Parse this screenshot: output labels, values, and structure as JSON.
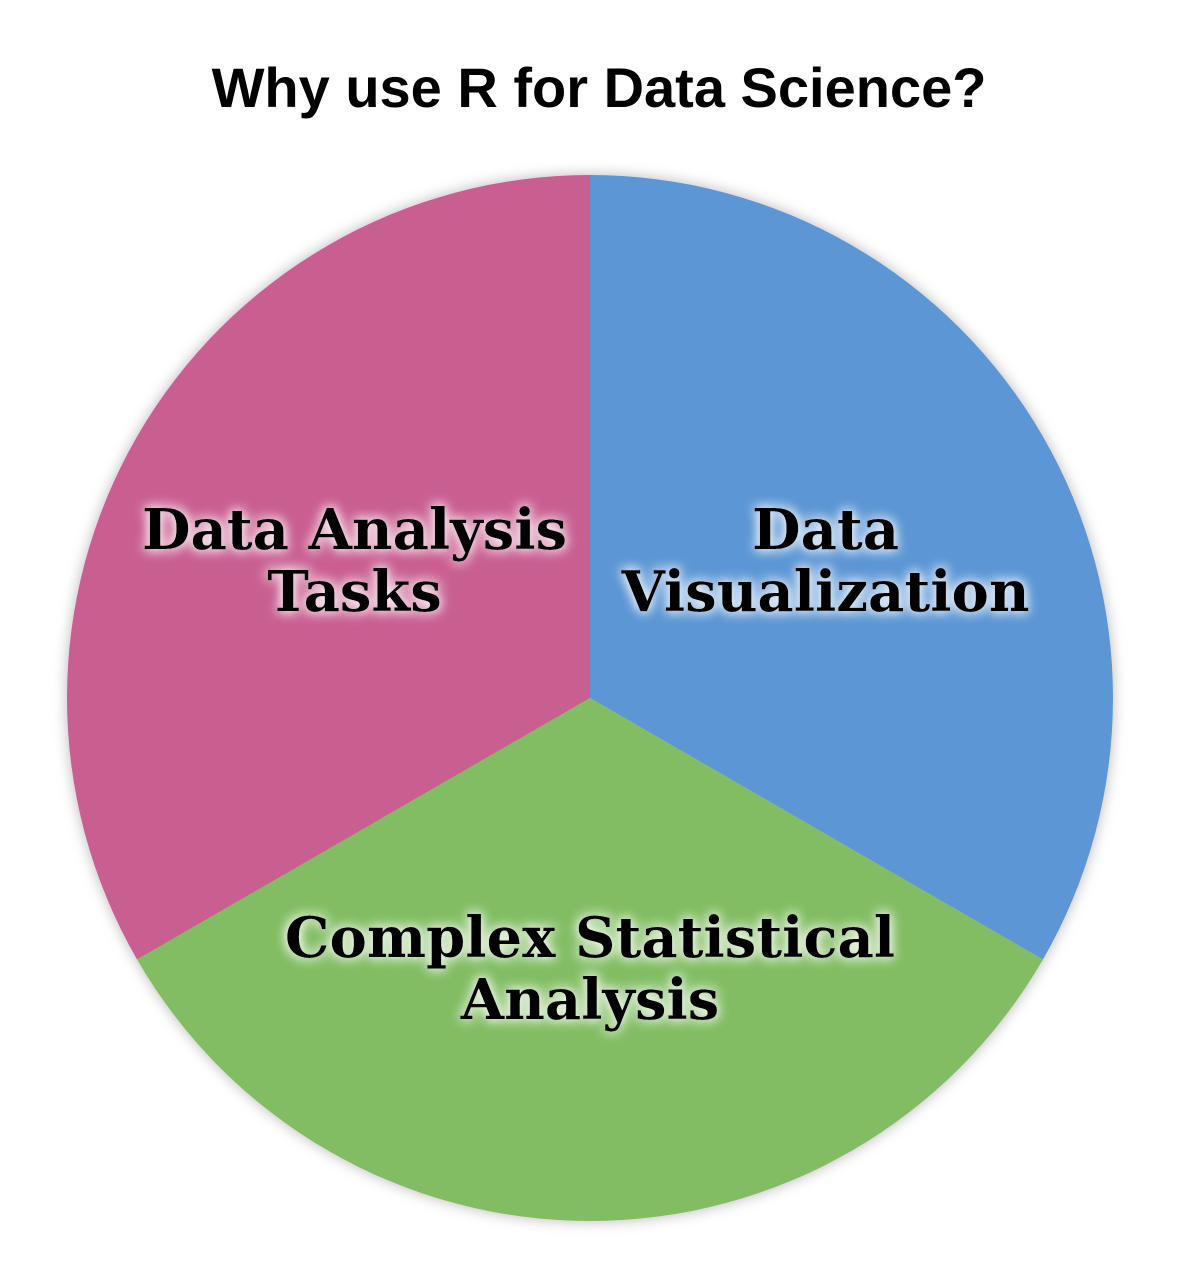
{
  "title": "Why use R for Data Science?",
  "chart_data": {
    "type": "pie",
    "title": "Why use R for Data Science?",
    "slices": [
      {
        "label_lines": [
          "Data",
          "Visualization"
        ],
        "value": 1,
        "color": "#5b96d4"
      },
      {
        "label_lines": [
          "Complex Statistical",
          "Analysis"
        ],
        "value": 1,
        "color": "#82bd63"
      },
      {
        "label_lines": [
          "Data Analysis",
          "Tasks"
        ],
        "value": 1,
        "color": "#c95e91"
      }
    ],
    "legend": "none"
  }
}
